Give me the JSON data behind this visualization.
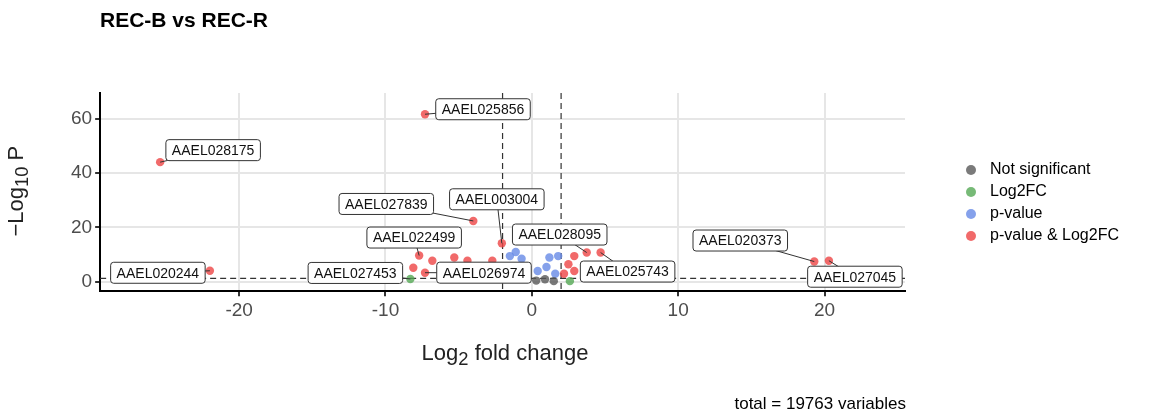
{
  "chart_data": {
    "type": "scatter",
    "title": "REC-B vs REC-R",
    "xlabel": "Log$_{2}$ fold change",
    "ylabel": "−Log$_{10}$ P",
    "xlim": [
      -29.5,
      25.5
    ],
    "ylim": [
      -3.4,
      69.4
    ],
    "xticks": [
      -20,
      -10,
      0,
      10,
      20
    ],
    "yticks": [
      0,
      20,
      40,
      60
    ],
    "grid": true,
    "legend": "right",
    "marker": "circle",
    "series": [
      {
        "name": "Not significant",
        "color": "#595959",
        "x": [
          0.3,
          0.9,
          1.5
        ],
        "values": [
          0.5,
          1.0,
          0.3
        ]
      },
      {
        "name": "Log2FC",
        "color": "#55a955",
        "x": [
          -8.3,
          2.6
        ],
        "values": [
          1.1,
          0.3
        ]
      },
      {
        "name": "p-value",
        "color": "#6789e6",
        "x": [
          -1.5,
          -1.1,
          -0.7,
          0.4,
          1.0,
          1.6,
          1.8,
          1.2
        ],
        "values": [
          9.5,
          11.0,
          8.5,
          4.0,
          5.5,
          3.0,
          9.5,
          9.0
        ]
      },
      {
        "name": "p-value & Log2FC",
        "color": "#ee4545",
        "x": [
          -7.3,
          -25.4,
          -4.0,
          -2.05,
          -7.7,
          -22.0,
          -7.3,
          3.75,
          4.7,
          19.3,
          20.3,
          -6.8,
          -5.3,
          -4.4,
          -2.7,
          -8.1,
          2.2,
          2.5,
          2.9,
          2.9
        ],
        "values": [
          61.6,
          44.0,
          22.4,
          14.2,
          9.7,
          4.1,
          3.4,
          10.8,
          10.8,
          7.5,
          7.8,
          7.8,
          9.0,
          7.8,
          7.8,
          5.2,
          3.0,
          6.5,
          9.5,
          4.0
        ]
      }
    ],
    "ref_lines": [
      {
        "axis": "x",
        "value": -2,
        "line_style": "dashed"
      },
      {
        "axis": "x",
        "value": 2,
        "line_style": "dashed"
      },
      {
        "axis": "y",
        "value": 1.3,
        "line_style": "dashed"
      }
    ],
    "annotations": [
      {
        "text": "AAEL025856",
        "x": -7.3,
        "y": 61.6
      },
      {
        "text": "AAEL028175",
        "x": -25.4,
        "y": 44.0
      },
      {
        "text": "AAEL027839",
        "x": -4.0,
        "y": 22.4
      },
      {
        "text": "AAEL003004",
        "x": -2.05,
        "y": 14.2
      },
      {
        "text": "AAEL022499",
        "x": -7.7,
        "y": 9.7
      },
      {
        "text": "AAEL020244",
        "x": -22.0,
        "y": 4.1
      },
      {
        "text": "AAEL027453",
        "x": -8.3,
        "y": 1.1
      },
      {
        "text": "AAEL026974",
        "x": -7.3,
        "y": 3.4
      },
      {
        "text": "AAEL028095",
        "x": 3.75,
        "y": 10.8
      },
      {
        "text": "AAEL025743",
        "x": 4.7,
        "y": 10.8
      },
      {
        "text": "AAEL020373",
        "x": 19.3,
        "y": 7.5
      },
      {
        "text": "AAEL027045",
        "x": 20.3,
        "y": 7.8
      },
      "total = 19763 variables"
    ]
  }
}
